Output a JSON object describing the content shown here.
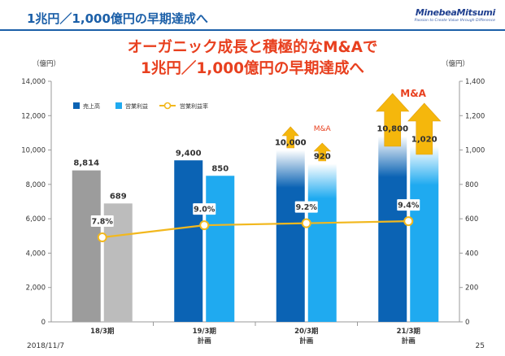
{
  "header": {
    "title": "1兆円／1,000億円の早期達成へ",
    "logo_main": "MinebeaMitsumi",
    "logo_sub": "Passion to Create Value through Difference"
  },
  "headline": {
    "line1": "オーガニック成長と積極的なM&Aで",
    "line2": "1兆円／1,000億円の早期達成へ"
  },
  "footer": {
    "date": "2018/11/7",
    "page": "25"
  },
  "colors": {
    "headline": "#e8401f",
    "sales_actual": "#9c9c9c",
    "op_actual": "#bcbcbc",
    "sales_plan": "#0b63b4",
    "op_plan": "#1faaf0",
    "margin_line": "#f2b81e",
    "arrow": "#f5b400",
    "ma_text": "#e8401f"
  },
  "chart_data": {
    "type": "bar",
    "categories": [
      {
        "label": "18/3期",
        "sub": ""
      },
      {
        "label": "19/3期",
        "sub": "計画"
      },
      {
        "label": "20/3期",
        "sub": "計画"
      },
      {
        "label": "21/3期",
        "sub": "計画"
      }
    ],
    "left_axis": {
      "unit": "（億円）",
      "min": 0,
      "max": 14000,
      "ticks": [
        "0",
        "2,000",
        "4,000",
        "6,000",
        "8,000",
        "10,000",
        "12,000",
        "14,000"
      ]
    },
    "right_axis": {
      "unit": "（億円）",
      "min": 0,
      "max": 1400,
      "ticks": [
        "0",
        "200",
        "400",
        "600",
        "800",
        "1,000",
        "1,200",
        "1,400"
      ]
    },
    "series": [
      {
        "name": "売上高",
        "axis": "left",
        "values": [
          8814,
          9400,
          10000,
          10800
        ],
        "labels": [
          "8,814",
          "9,400",
          "10,000",
          "10,800"
        ]
      },
      {
        "name": "営業利益",
        "axis": "right",
        "values": [
          689,
          850,
          920,
          1020
        ],
        "labels": [
          "689",
          "850",
          "920",
          "1,020"
        ]
      },
      {
        "name": "営業利益率",
        "type": "line",
        "values": [
          7.8,
          9.0,
          9.2,
          9.4
        ],
        "labels": [
          "7.8%",
          "9.0%",
          "9.2%",
          "9.4%"
        ]
      }
    ],
    "annotations": [
      {
        "category": "20/3期",
        "text": "M&A"
      },
      {
        "category": "21/3期",
        "text": "M&A"
      }
    ],
    "legend_position": "top-left",
    "grid": false
  }
}
